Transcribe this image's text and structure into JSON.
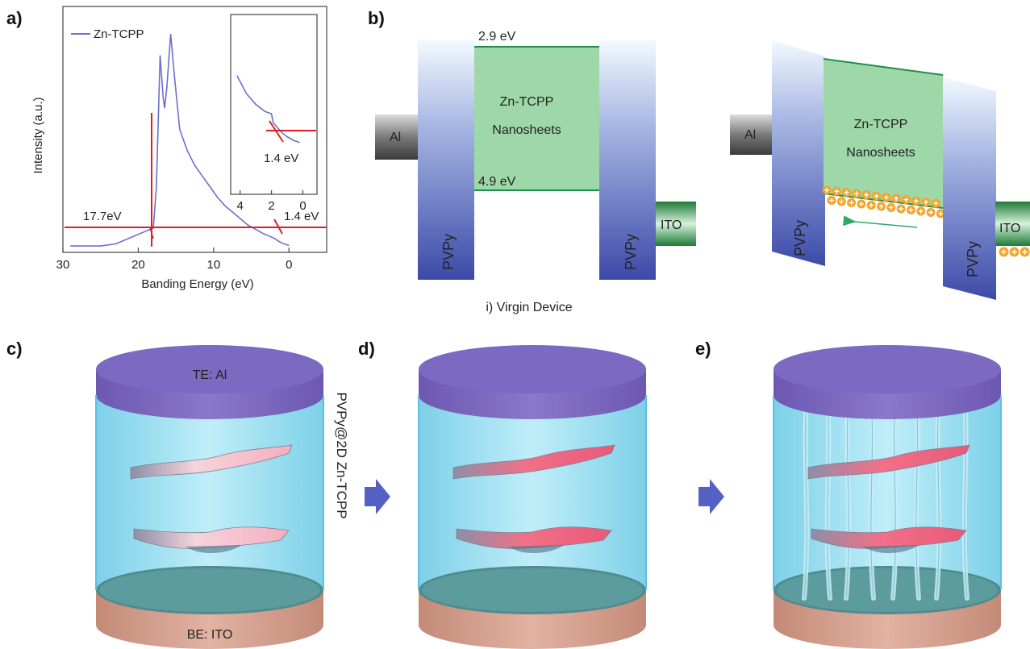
{
  "panels": {
    "a": "a)",
    "b": "b)",
    "c": "c)",
    "d": "d)",
    "e": "e)"
  },
  "chart_data": {
    "type": "line",
    "series": [
      {
        "name": "Zn-TCPP"
      }
    ],
    "xlabel": "Banding Energy (eV)",
    "ylabel": "Intensity (a.u.)",
    "xlim": [
      30,
      -5
    ],
    "x_reversed": true,
    "x_ticks": [
      "30",
      "20",
      "10",
      "0"
    ],
    "x": [
      29,
      27,
      25,
      23,
      21,
      19,
      18,
      17.6,
      17.1,
      16.7,
      16.5,
      16.2,
      15.7,
      15.2,
      14.5,
      13.5,
      12.5,
      11.5,
      10.5,
      9.5,
      8.5,
      7.5,
      6.5,
      5.5,
      4.5,
      3.5,
      2.5,
      1.9,
      1.5,
      1.0,
      0.5,
      0
    ],
    "y": [
      0,
      0,
      0,
      0.1,
      0.4,
      0.7,
      0.85,
      2.8,
      9.0,
      7.0,
      6.5,
      7.5,
      10.0,
      8.0,
      5.5,
      4.5,
      3.8,
      3.3,
      2.8,
      2.3,
      1.9,
      1.6,
      1.3,
      1.0,
      0.8,
      0.6,
      0.45,
      0.35,
      0.25,
      0.15,
      0.08,
      0.03
    ],
    "ylim": [
      -0.3,
      11.3
    ],
    "annotations": [
      "17.7eV",
      "1.4 eV"
    ],
    "inset": {
      "x_ticks": [
        "4",
        "2",
        "0"
      ],
      "xlim": [
        4.6,
        -0.9
      ],
      "x": [
        4.2,
        3.6,
        3.0,
        2.4,
        2.0,
        1.9,
        1.6,
        1.3,
        1.0,
        0.6,
        0.2
      ],
      "y": [
        0.95,
        0.7,
        0.55,
        0.45,
        0.42,
        0.3,
        0.22,
        0.15,
        0.1,
        0.05,
        0.02
      ],
      "ylim": [
        -0.7,
        1.8
      ],
      "annotation": "1.4 eV"
    }
  },
  "diagram_b": {
    "left": {
      "cbm": "2.9 eV",
      "vbm": "4.9 eV",
      "layer_line1": "Zn-TCPP",
      "layer_line2": "Nanosheets",
      "left_electrode": "Al",
      "right_electrode": "ITO",
      "polymer_left": "PVPy",
      "polymer_right": "PVPy",
      "caption": "i) Virgin Device"
    },
    "right": {
      "layer_line1": "Zn-TCPP",
      "layer_line2": "Nanosheets",
      "left_electrode": "Al",
      "right_electrode": "ITO",
      "polymer_left": "PVPy",
      "polymer_right": "PVPy"
    }
  },
  "device_c": {
    "top": "TE: Al",
    "bottom": "BE: ITO",
    "side": "PVPy@2D Zn-TCPP"
  },
  "colors": {
    "curve": "#6a6fd0",
    "fit": "#e02020",
    "layer": "#9ed8a8",
    "level": "#1f8f4e",
    "polymer": "#4e5fb8",
    "cylinder": "#9fe0f4",
    "top_cap": "#7d6cc0",
    "bottom_cap": "#d49e8c",
    "sheet": "#f06c86",
    "charge": "#f0a020"
  }
}
